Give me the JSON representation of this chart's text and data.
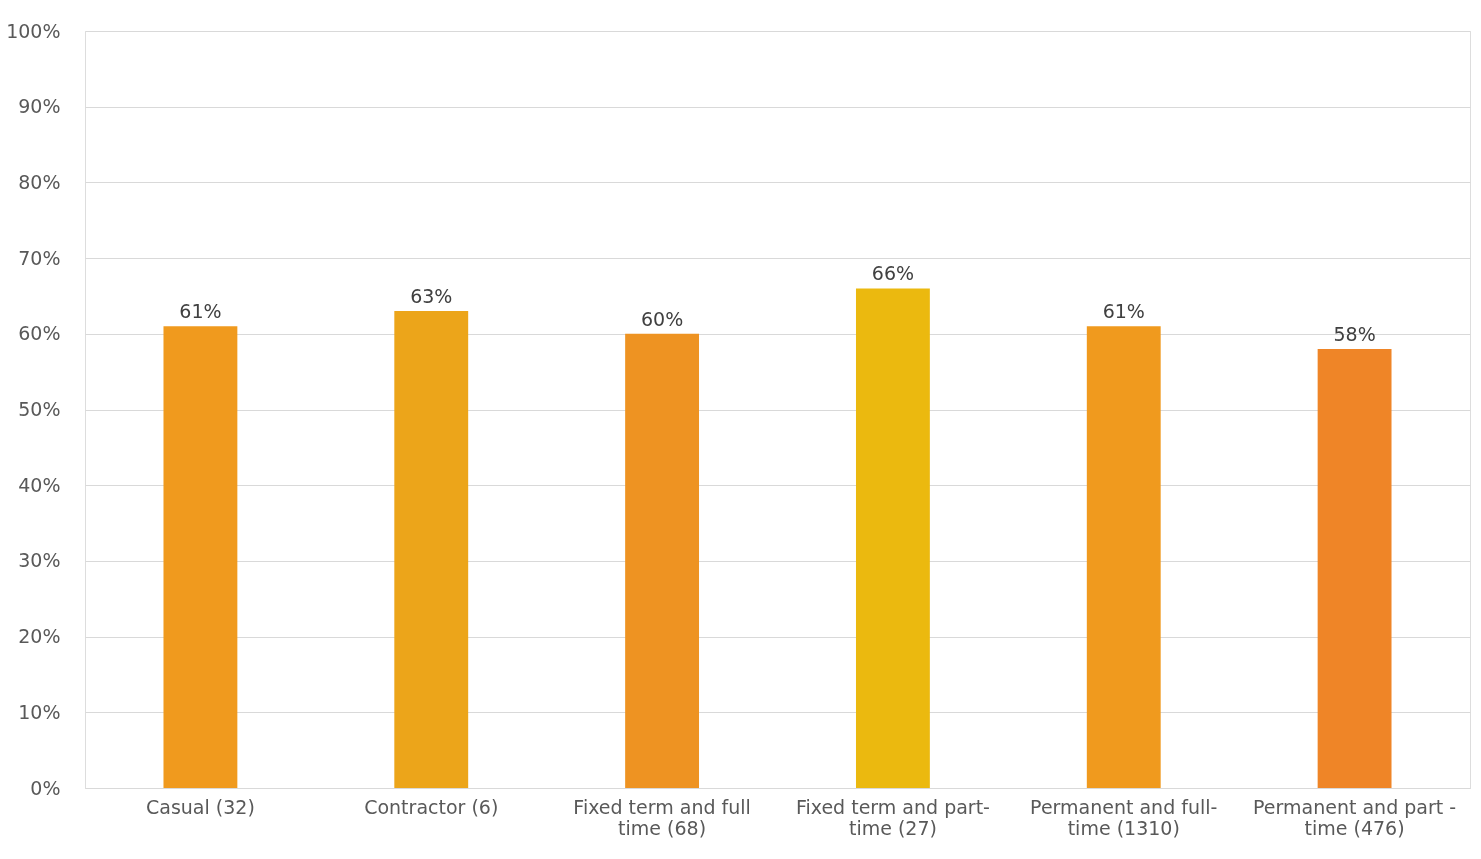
{
  "chart_data": {
    "type": "bar",
    "categories": [
      "Casual (32)",
      "Contractor (6)",
      "Fixed term and full time (68)",
      "Fixed term and part-time (27)",
      "Permanent and full-time (1310)",
      "Permanent and part - time (476)"
    ],
    "values": [
      61,
      63,
      60,
      66,
      61,
      58
    ],
    "colors": [
      "#f09a1e",
      "#eca51a",
      "#ee9322",
      "#ebb90f",
      "#f09a1e",
      "#ef8527"
    ],
    "value_labels": [
      "61%",
      "63%",
      "60%",
      "66%",
      "61%",
      "58%"
    ],
    "ylim": [
      0,
      100
    ],
    "yticks": [
      {
        "value": 0,
        "label": "0%"
      },
      {
        "value": 10,
        "label": "10%"
      },
      {
        "value": 20,
        "label": "20%"
      },
      {
        "value": 30,
        "label": "30%"
      },
      {
        "value": 40,
        "label": "40%"
      },
      {
        "value": 50,
        "label": "50%"
      },
      {
        "value": 60,
        "label": "60%"
      },
      {
        "value": 70,
        "label": "70%"
      },
      {
        "value": 80,
        "label": "80%"
      },
      {
        "value": 90,
        "label": "90%"
      },
      {
        "value": 100,
        "label": "100%"
      }
    ],
    "grid": "y",
    "legend": false
  }
}
